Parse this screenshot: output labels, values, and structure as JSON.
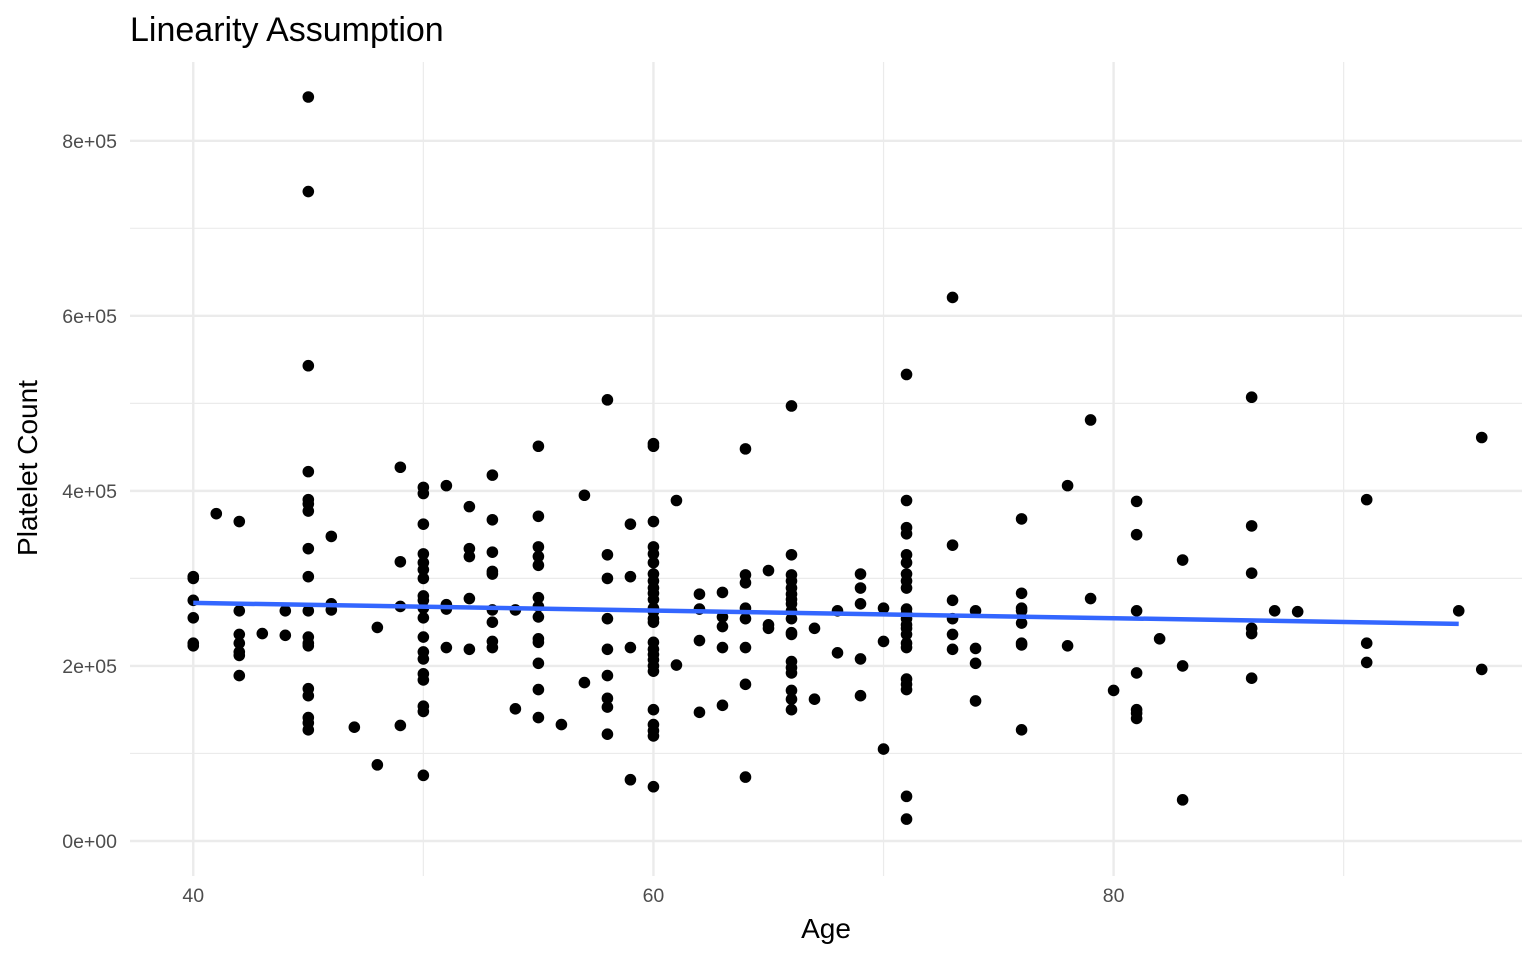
{
  "chart_data": {
    "type": "scatter",
    "title": "Linearity Assumption",
    "xlabel": "Age",
    "ylabel": "Platelet Count",
    "xlim": [
      37.25,
      97.75
    ],
    "ylim": [
      -40000.0,
      890000.0
    ],
    "x_ticks": [
      40,
      60,
      80
    ],
    "x_tick_labels": [
      "40",
      "60",
      "80"
    ],
    "x_minor_ticks": [
      50,
      70,
      90
    ],
    "y_ticks": [
      0,
      200000,
      400000,
      600000,
      800000
    ],
    "y_tick_labels": [
      "0e+00",
      "2e+05",
      "4e+05",
      "6e+05",
      "8e+05"
    ],
    "y_minor_ticks": [
      100000,
      300000,
      500000,
      700000
    ],
    "grid": true,
    "point_color": "#000000",
    "trend_color": "#3366FF",
    "trend_line": {
      "x": [
        40,
        95
      ],
      "y": [
        272000,
        248000
      ]
    },
    "points": [
      [
        40,
        302000
      ],
      [
        40,
        300000
      ],
      [
        40,
        275000
      ],
      [
        40,
        255000
      ],
      [
        40,
        226000
      ],
      [
        40,
        223000
      ],
      [
        41,
        374000
      ],
      [
        42,
        365000
      ],
      [
        42,
        263000
      ],
      [
        42,
        236000
      ],
      [
        42,
        226000
      ],
      [
        42,
        216000
      ],
      [
        42,
        212000
      ],
      [
        42,
        189000
      ],
      [
        43,
        237000
      ],
      [
        44,
        263000
      ],
      [
        44,
        235000
      ],
      [
        45,
        850000
      ],
      [
        45,
        742000
      ],
      [
        45,
        543000
      ],
      [
        45,
        422000
      ],
      [
        45,
        390000
      ],
      [
        45,
        385000
      ],
      [
        45,
        377000
      ],
      [
        45,
        334000
      ],
      [
        45,
        302000
      ],
      [
        45,
        263000
      ],
      [
        45,
        233000
      ],
      [
        45,
        226000
      ],
      [
        45,
        223000
      ],
      [
        45,
        174000
      ],
      [
        45,
        166000
      ],
      [
        45,
        141000
      ],
      [
        45,
        135000
      ],
      [
        45,
        127000
      ],
      [
        46,
        348000
      ],
      [
        46,
        271000
      ],
      [
        46,
        264000
      ],
      [
        47,
        130000
      ],
      [
        48,
        244000
      ],
      [
        48,
        87000
      ],
      [
        49,
        427000
      ],
      [
        49,
        319000
      ],
      [
        49,
        268000
      ],
      [
        49,
        132000
      ],
      [
        50,
        404000
      ],
      [
        50,
        397000
      ],
      [
        50,
        362000
      ],
      [
        50,
        328000
      ],
      [
        50,
        318000
      ],
      [
        50,
        310000
      ],
      [
        50,
        300000
      ],
      [
        50,
        280000
      ],
      [
        50,
        275000
      ],
      [
        50,
        266000
      ],
      [
        50,
        255000
      ],
      [
        50,
        233000
      ],
      [
        50,
        216000
      ],
      [
        50,
        208000
      ],
      [
        50,
        191000
      ],
      [
        50,
        184000
      ],
      [
        50,
        154000
      ],
      [
        50,
        148000
      ],
      [
        50,
        75000
      ],
      [
        51,
        406000
      ],
      [
        51,
        270000
      ],
      [
        51,
        265000
      ],
      [
        51,
        221000
      ],
      [
        52,
        382000
      ],
      [
        52,
        334000
      ],
      [
        52,
        325000
      ],
      [
        52,
        277000
      ],
      [
        52,
        219000
      ],
      [
        53,
        418000
      ],
      [
        53,
        367000
      ],
      [
        53,
        330000
      ],
      [
        53,
        308000
      ],
      [
        53,
        305000
      ],
      [
        53,
        264000
      ],
      [
        53,
        250000
      ],
      [
        53,
        228000
      ],
      [
        53,
        221000
      ],
      [
        54,
        264000
      ],
      [
        54,
        151000
      ],
      [
        55,
        451000
      ],
      [
        55,
        371000
      ],
      [
        55,
        336000
      ],
      [
        55,
        325000
      ],
      [
        55,
        315000
      ],
      [
        55,
        278000
      ],
      [
        55,
        268000
      ],
      [
        55,
        256000
      ],
      [
        55,
        231000
      ],
      [
        55,
        227000
      ],
      [
        55,
        203000
      ],
      [
        55,
        173000
      ],
      [
        55,
        141000
      ],
      [
        56,
        133000
      ],
      [
        57,
        395000
      ],
      [
        57,
        181000
      ],
      [
        58,
        504000
      ],
      [
        58,
        327000
      ],
      [
        58,
        300000
      ],
      [
        58,
        254000
      ],
      [
        58,
        219000
      ],
      [
        58,
        189000
      ],
      [
        58,
        163000
      ],
      [
        58,
        153000
      ],
      [
        58,
        122000
      ],
      [
        59,
        362000
      ],
      [
        59,
        302000
      ],
      [
        59,
        221000
      ],
      [
        59,
        70000
      ],
      [
        60,
        454000
      ],
      [
        60,
        451000
      ],
      [
        60,
        365000
      ],
      [
        60,
        336000
      ],
      [
        60,
        328000
      ],
      [
        60,
        318000
      ],
      [
        60,
        305000
      ],
      [
        60,
        297000
      ],
      [
        60,
        289000
      ],
      [
        60,
        283000
      ],
      [
        60,
        276000
      ],
      [
        60,
        266000
      ],
      [
        60,
        262000
      ],
      [
        60,
        254000
      ],
      [
        60,
        250000
      ],
      [
        60,
        227000
      ],
      [
        60,
        219000
      ],
      [
        60,
        213000
      ],
      [
        60,
        207000
      ],
      [
        60,
        200000
      ],
      [
        60,
        194000
      ],
      [
        60,
        150000
      ],
      [
        60,
        133000
      ],
      [
        60,
        126000
      ],
      [
        60,
        120000
      ],
      [
        60,
        62000
      ],
      [
        61,
        389000
      ],
      [
        61,
        201000
      ],
      [
        62,
        282000
      ],
      [
        62,
        265000
      ],
      [
        62,
        229000
      ],
      [
        62,
        147000
      ],
      [
        63,
        284000
      ],
      [
        63,
        256000
      ],
      [
        63,
        245000
      ],
      [
        63,
        221000
      ],
      [
        63,
        155000
      ],
      [
        64,
        448000
      ],
      [
        64,
        304000
      ],
      [
        64,
        295000
      ],
      [
        64,
        266000
      ],
      [
        64,
        254000
      ],
      [
        64,
        221000
      ],
      [
        64,
        179000
      ],
      [
        64,
        73000
      ],
      [
        65,
        309000
      ],
      [
        65,
        247000
      ],
      [
        65,
        243000
      ],
      [
        66,
        497000
      ],
      [
        66,
        327000
      ],
      [
        66,
        304000
      ],
      [
        66,
        297000
      ],
      [
        66,
        289000
      ],
      [
        66,
        282000
      ],
      [
        66,
        276000
      ],
      [
        66,
        271000
      ],
      [
        66,
        263000
      ],
      [
        66,
        254000
      ],
      [
        66,
        238000
      ],
      [
        66,
        236000
      ],
      [
        66,
        205000
      ],
      [
        66,
        198000
      ],
      [
        66,
        192000
      ],
      [
        66,
        172000
      ],
      [
        66,
        162000
      ],
      [
        66,
        150000
      ],
      [
        67,
        243000
      ],
      [
        67,
        162000
      ],
      [
        68,
        263000
      ],
      [
        68,
        215000
      ],
      [
        69,
        305000
      ],
      [
        69,
        289000
      ],
      [
        69,
        271000
      ],
      [
        69,
        208000
      ],
      [
        69,
        166000
      ],
      [
        70,
        266000
      ],
      [
        70,
        228000
      ],
      [
        70,
        105000
      ],
      [
        71,
        533000
      ],
      [
        71,
        389000
      ],
      [
        71,
        358000
      ],
      [
        71,
        351000
      ],
      [
        71,
        327000
      ],
      [
        71,
        318000
      ],
      [
        71,
        305000
      ],
      [
        71,
        297000
      ],
      [
        71,
        289000
      ],
      [
        71,
        265000
      ],
      [
        71,
        260000
      ],
      [
        71,
        254000
      ],
      [
        71,
        247000
      ],
      [
        71,
        243000
      ],
      [
        71,
        236000
      ],
      [
        71,
        226000
      ],
      [
        71,
        221000
      ],
      [
        71,
        185000
      ],
      [
        71,
        179000
      ],
      [
        71,
        173000
      ],
      [
        71,
        51000
      ],
      [
        71,
        25000
      ],
      [
        73,
        621000
      ],
      [
        73,
        338000
      ],
      [
        73,
        275000
      ],
      [
        73,
        254000
      ],
      [
        73,
        236000
      ],
      [
        73,
        219000
      ],
      [
        74,
        263000
      ],
      [
        74,
        220000
      ],
      [
        74,
        203000
      ],
      [
        74,
        160000
      ],
      [
        76,
        368000
      ],
      [
        76,
        283000
      ],
      [
        76,
        266000
      ],
      [
        76,
        263000
      ],
      [
        76,
        249000
      ],
      [
        76,
        226000
      ],
      [
        76,
        224000
      ],
      [
        76,
        127000
      ],
      [
        78,
        406000
      ],
      [
        78,
        223000
      ],
      [
        79,
        481000
      ],
      [
        79,
        277000
      ],
      [
        80,
        172000
      ],
      [
        81,
        388000
      ],
      [
        81,
        350000
      ],
      [
        81,
        263000
      ],
      [
        81,
        192000
      ],
      [
        81,
        150000
      ],
      [
        81,
        146000
      ],
      [
        81,
        140000
      ],
      [
        82,
        231000
      ],
      [
        83,
        321000
      ],
      [
        83,
        200000
      ],
      [
        83,
        47000
      ],
      [
        86,
        507000
      ],
      [
        86,
        360000
      ],
      [
        86,
        306000
      ],
      [
        86,
        243000
      ],
      [
        86,
        237000
      ],
      [
        86,
        186000
      ],
      [
        87,
        263000
      ],
      [
        88,
        262000
      ],
      [
        91,
        390000
      ],
      [
        91,
        226000
      ],
      [
        91,
        204000
      ],
      [
        95,
        263000
      ],
      [
        96,
        461000
      ],
      [
        96,
        196000
      ]
    ]
  }
}
